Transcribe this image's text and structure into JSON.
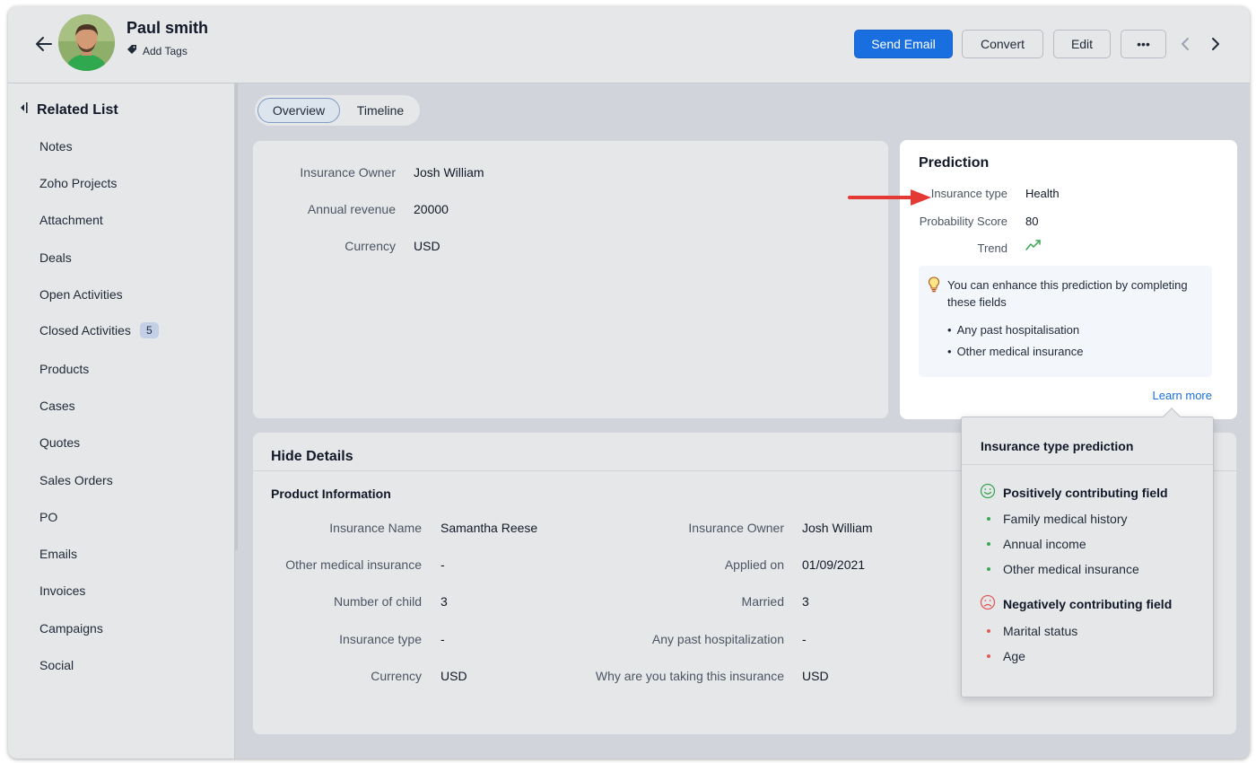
{
  "header": {
    "contact_name": "Paul smith",
    "add_tags_label": "Add Tags",
    "buttons": {
      "send_email": "Send Email",
      "convert": "Convert",
      "edit": "Edit",
      "more": "•••"
    }
  },
  "sidebar": {
    "title": "Related List",
    "items": [
      {
        "label": "Notes"
      },
      {
        "label": "Zoho Projects"
      },
      {
        "label": "Attachment"
      },
      {
        "label": "Deals"
      },
      {
        "label": "Open Activities"
      },
      {
        "label": "Closed Activities",
        "count": "5"
      },
      {
        "label": "Products"
      },
      {
        "label": "Cases"
      },
      {
        "label": "Quotes"
      },
      {
        "label": "Sales Orders"
      },
      {
        "label": "PO"
      },
      {
        "label": "Emails"
      },
      {
        "label": "Invoices"
      },
      {
        "label": "Campaigns"
      },
      {
        "label": "Social"
      }
    ]
  },
  "tabs": {
    "overview": "Overview",
    "timeline": "Timeline",
    "active": "Overview"
  },
  "overview": {
    "fields": [
      {
        "label": "Insurance Owner",
        "value": "Josh William"
      },
      {
        "label": "Annual revenue",
        "value": "20000"
      },
      {
        "label": "Currency",
        "value": "USD"
      }
    ]
  },
  "prediction": {
    "title": "Prediction",
    "insurance_type_label": "Insurance type",
    "insurance_type_value": "Health",
    "probability_label": "Probability Score",
    "probability_value": "80",
    "trend_label": "Trend",
    "trend_icon": "trend-up-icon",
    "enhance_text": "You can enhance this prediction by completing these fields",
    "enhance_fields": [
      "Any past hospitalisation",
      "Other medical insurance"
    ],
    "learn_more": "Learn more"
  },
  "details": {
    "toggle_label": "Hide Details",
    "section_title": "Product Information",
    "left_fields": [
      {
        "label": "Insurance Name",
        "value": "Samantha Reese"
      },
      {
        "label": "Other medical insurance",
        "value": "-"
      },
      {
        "label": "Number of child",
        "value": "3"
      },
      {
        "label": "Insurance type",
        "value": "-"
      },
      {
        "label": "Currency",
        "value": "USD"
      }
    ],
    "right_fields": [
      {
        "label": "Insurance Owner",
        "value": "Josh William"
      },
      {
        "label": "Applied on",
        "value": "01/09/2021"
      },
      {
        "label": "Married",
        "value": "3"
      },
      {
        "label": "Any past hospitalization",
        "value": "-"
      },
      {
        "label": "Why are you taking this insurance",
        "value": "USD"
      }
    ]
  },
  "popover": {
    "title": "Insurance type prediction",
    "positive_heading": "Positively contributing field",
    "positive_items": [
      "Family medical history",
      "Annual income",
      "Other medical insurance"
    ],
    "negative_heading": "Negatively contributing field",
    "negative_items": [
      "Marital status",
      "Age"
    ]
  },
  "colors": {
    "primary": "#1a6fe0",
    "positive": "#3aa655",
    "negative": "#e05c5c",
    "annotation_arrow": "#e53935"
  }
}
